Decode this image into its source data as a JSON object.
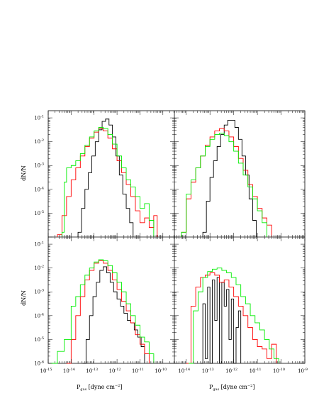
{
  "figure": {
    "ylabel": "dN/N",
    "xlabel": {
      "main": "P",
      "sub": "gas",
      "units": " [dyne cm",
      "units_exp": "−2",
      "close": "]"
    }
  },
  "colors": {
    "black": "#000000",
    "red": "#ff0000",
    "green": "#00ee00",
    "frame": "#000000"
  },
  "axes": {
    "y_exponents": [
      "-6",
      "-5",
      "-4",
      "-3",
      "-2",
      "-1"
    ],
    "x_left_exponents": [
      "-15",
      "-14",
      "-13",
      "-12",
      "-11",
      "-10"
    ],
    "x_right_exponents": [
      "-14",
      "-13",
      "-12",
      "-11",
      "-10",
      "-9"
    ],
    "x_left_log_range": [
      -15,
      -9.5
    ],
    "x_right_log_range": [
      -14.5,
      -9
    ],
    "y_log_range": [
      -6,
      -0.7
    ],
    "y_major_labels": {
      "top_panels": [
        -5,
        -4,
        -3,
        -2,
        -1
      ],
      "bottom_panels": [
        -6,
        -5,
        -4,
        -3,
        -2,
        -1
      ]
    }
  },
  "chart_data": [
    {
      "type": "line",
      "panel": "top-left",
      "ylog": true,
      "xlog": true,
      "xlabel": "",
      "ylabel": "dN/N",
      "series": [
        {
          "color": "black",
          "x": [
            -13.7,
            -13.55,
            -13.4,
            -13.25,
            -13.1,
            -12.95,
            -12.8,
            -12.65,
            -12.5,
            -12.35,
            -12.2,
            -12.05,
            -11.9,
            -11.75,
            -11.6,
            -11.45,
            -11.3
          ],
          "y": [
            -5.8,
            -4.8,
            -4.0,
            -3.3,
            -2.6,
            -2.0,
            -1.5,
            -1.15,
            -1.05,
            -1.3,
            -1.8,
            -2.6,
            -3.4,
            -4.2,
            -4.8,
            -5.4,
            -5.8
          ]
        },
        {
          "color": "red",
          "x": [
            -14.6,
            -14.4,
            -14.2,
            -14.0,
            -13.8,
            -13.6,
            -13.4,
            -13.2,
            -13.0,
            -12.8,
            -12.6,
            -12.4,
            -12.2,
            -12.0,
            -11.8,
            -11.6,
            -11.4,
            -11.2,
            -11.0,
            -10.8,
            -10.6,
            -10.4,
            -10.25
          ],
          "y": [
            -5.9,
            -5.1,
            -4.3,
            -3.6,
            -3.1,
            -2.6,
            -2.2,
            -1.85,
            -1.6,
            -1.45,
            -1.55,
            -1.85,
            -2.3,
            -2.8,
            -3.3,
            -3.8,
            -4.3,
            -4.9,
            -5.4,
            -5.2,
            -5.6,
            -5.1,
            -5.9
          ]
        },
        {
          "color": "green",
          "x": [
            -14.4,
            -14.3,
            -14.2,
            -14.0,
            -13.8,
            -13.6,
            -13.4,
            -13.2,
            -13.0,
            -12.8,
            -12.6,
            -12.4,
            -12.2,
            -12.0,
            -11.8,
            -11.6,
            -11.4,
            -11.2,
            -11.0,
            -10.8,
            -10.6,
            -10.4
          ],
          "y": [
            -5.8,
            -3.7,
            -3.1,
            -3.0,
            -2.8,
            -2.5,
            -2.15,
            -1.8,
            -1.55,
            -1.4,
            -1.45,
            -1.7,
            -2.1,
            -2.6,
            -3.1,
            -3.6,
            -3.9,
            -4.3,
            -4.8,
            -4.6,
            -5.3,
            -5.8
          ]
        }
      ]
    },
    {
      "type": "line",
      "panel": "top-right",
      "ylog": true,
      "xlog": true,
      "xlabel": "",
      "ylabel": "",
      "series": [
        {
          "color": "black",
          "x": [
            -13.3,
            -13.15,
            -13.0,
            -12.85,
            -12.7,
            -12.55,
            -12.4,
            -12.25,
            -12.1,
            -11.95,
            -11.8,
            -11.65,
            -11.5,
            -11.35,
            -11.2,
            -11.05
          ],
          "y": [
            -5.8,
            -4.5,
            -3.5,
            -2.8,
            -2.2,
            -1.7,
            -1.3,
            -1.1,
            -1.1,
            -1.4,
            -1.9,
            -2.6,
            -3.4,
            -4.4,
            -5.3,
            -5.8
          ]
        },
        {
          "color": "red",
          "x": [
            -14.2,
            -14.0,
            -13.8,
            -13.6,
            -13.4,
            -13.2,
            -13.0,
            -12.8,
            -12.6,
            -12.4,
            -12.2,
            -12.0,
            -11.8,
            -11.6,
            -11.4,
            -11.2,
            -11.0,
            -10.8,
            -10.6,
            -10.4
          ],
          "y": [
            -5.8,
            -4.4,
            -3.7,
            -3.1,
            -2.6,
            -2.15,
            -1.8,
            -1.55,
            -1.45,
            -1.55,
            -1.8,
            -2.2,
            -2.7,
            -3.2,
            -3.8,
            -4.3,
            -4.8,
            -5.2,
            -5.5,
            -5.8
          ]
        },
        {
          "color": "green",
          "x": [
            -14.2,
            -14.0,
            -13.8,
            -13.6,
            -13.4,
            -13.2,
            -13.0,
            -12.8,
            -12.6,
            -12.4,
            -12.2,
            -12.0,
            -11.8,
            -11.6,
            -11.4,
            -11.2,
            -11.0,
            -10.8,
            -10.6
          ],
          "y": [
            -5.8,
            -4.2,
            -3.6,
            -3.1,
            -2.6,
            -2.2,
            -1.9,
            -1.7,
            -1.65,
            -1.75,
            -2.0,
            -2.4,
            -2.9,
            -3.4,
            -3.9,
            -4.4,
            -4.9,
            -5.4,
            -5.8
          ]
        }
      ]
    },
    {
      "type": "line",
      "panel": "bottom-left",
      "ylog": true,
      "xlog": true,
      "xlabel": "Pgas [dyne cm−2]",
      "ylabel": "dN/N",
      "series": [
        {
          "color": "black",
          "x": [
            -13.5,
            -13.35,
            -13.2,
            -13.05,
            -12.9,
            -12.75,
            -12.6,
            -12.45,
            -12.3,
            -12.15,
            -12.0,
            -11.85,
            -11.7,
            -11.55,
            -11.4,
            -11.25,
            -11.1,
            -10.95,
            -10.8
          ],
          "y": [
            -6.0,
            -5.0,
            -4.0,
            -3.2,
            -2.6,
            -2.1,
            -1.95,
            -2.2,
            -2.6,
            -3.0,
            -3.3,
            -3.6,
            -3.9,
            -4.2,
            -4.3,
            -4.6,
            -4.9,
            -5.3,
            -6.0
          ]
        },
        {
          "color": "red",
          "x": [
            -14.2,
            -14.0,
            -13.8,
            -13.6,
            -13.4,
            -13.2,
            -13.0,
            -12.8,
            -12.6,
            -12.4,
            -12.2,
            -12.0,
            -11.8,
            -11.6,
            -11.4,
            -11.2,
            -11.0,
            -10.8,
            -10.6
          ],
          "y": [
            -6.0,
            -5.0,
            -4.0,
            -3.2,
            -2.5,
            -2.1,
            -1.8,
            -1.7,
            -1.8,
            -2.1,
            -2.5,
            -2.9,
            -3.4,
            -3.8,
            -4.3,
            -4.8,
            -5.2,
            -5.6,
            -6.0
          ]
        },
        {
          "color": "green",
          "x": [
            -14.9,
            -14.6,
            -14.3,
            -14.0,
            -13.8,
            -13.6,
            -13.4,
            -13.2,
            -13.0,
            -12.8,
            -12.6,
            -12.4,
            -12.2,
            -12.0,
            -11.8,
            -11.6,
            -11.4,
            -11.2,
            -11.0,
            -10.8,
            -10.6,
            -10.4
          ],
          "y": [
            -6.0,
            -5.5,
            -5.0,
            -3.6,
            -3.2,
            -2.7,
            -2.3,
            -2.0,
            -1.75,
            -1.65,
            -1.7,
            -1.9,
            -2.2,
            -2.6,
            -3.0,
            -3.5,
            -4.0,
            -4.4,
            -4.9,
            -5.1,
            -5.6,
            -6.0
          ]
        }
      ]
    },
    {
      "type": "line",
      "panel": "bottom-right",
      "ylog": true,
      "xlog": true,
      "xlabel": "Pgas [dyne cm−2]",
      "ylabel": "",
      "series": [
        {
          "color": "black",
          "x": [
            -13.4,
            -13.3,
            -13.2,
            -13.1,
            -13.0,
            -12.9,
            -12.8,
            -12.7,
            -12.6,
            -12.5,
            -12.4,
            -12.3,
            -12.2,
            -12.1,
            -12.0,
            -11.9,
            -11.8,
            -11.7
          ],
          "y": [
            -6.0,
            -3.5,
            -5.8,
            -2.8,
            -6.0,
            -2.5,
            -4.2,
            -2.4,
            -6.0,
            -2.6,
            -3.6,
            -2.9,
            -5.0,
            -3.3,
            -6.0,
            -4.5,
            -3.8,
            -6.0
          ]
        },
        {
          "color": "red",
          "x": [
            -14.0,
            -13.8,
            -13.6,
            -13.4,
            -13.2,
            -13.0,
            -12.8,
            -12.6,
            -12.4,
            -12.2,
            -12.0,
            -11.8,
            -11.6,
            -11.4,
            -11.2,
            -11.0,
            -10.8,
            -10.6,
            -10.4,
            -10.2
          ],
          "y": [
            -6.0,
            -3.6,
            -2.8,
            -2.4,
            -2.3,
            -2.2,
            -2.3,
            -2.6,
            -2.5,
            -2.8,
            -3.2,
            -3.6,
            -4.0,
            -4.5,
            -5.0,
            -5.3,
            -5.4,
            -5.8,
            -5.2,
            -6.0
          ]
        },
        {
          "color": "green",
          "x": [
            -13.9,
            -13.7,
            -13.5,
            -13.3,
            -13.1,
            -12.9,
            -12.7,
            -12.5,
            -12.3,
            -12.1,
            -11.9,
            -11.7,
            -11.5,
            -11.3,
            -11.1,
            -10.9,
            -10.7,
            -10.5,
            -10.3,
            -10.1
          ],
          "y": [
            -6.0,
            -3.8,
            -3.0,
            -2.4,
            -2.15,
            -2.05,
            -2.0,
            -2.1,
            -2.2,
            -2.4,
            -2.7,
            -3.2,
            -3.5,
            -4.0,
            -4.3,
            -4.6,
            -5.0,
            -5.4,
            -5.8,
            -6.0
          ]
        }
      ]
    }
  ]
}
